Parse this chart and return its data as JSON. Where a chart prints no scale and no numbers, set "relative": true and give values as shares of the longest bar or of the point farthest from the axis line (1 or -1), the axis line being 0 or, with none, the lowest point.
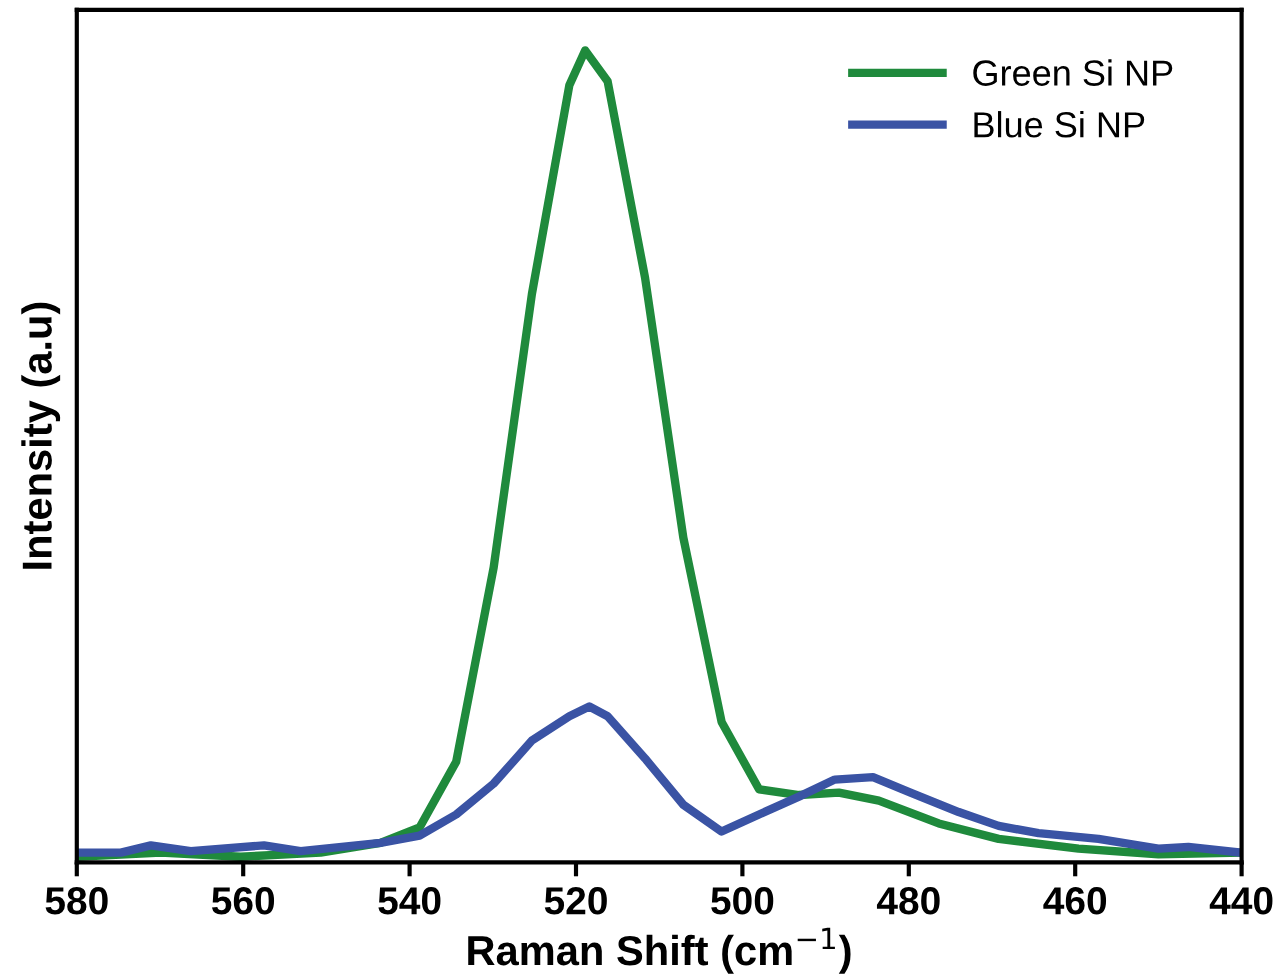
{
  "chart_data": {
    "type": "line",
    "xlabel": "Raman Shift (cm$^{−1}$)",
    "ylabel": "Intensity (a.u)",
    "relative": true,
    "xlim": [
      580,
      440
    ],
    "xticks": [
      580,
      560,
      540,
      520,
      500,
      480,
      460,
      440
    ],
    "legend": "top right",
    "grid": false,
    "series": [
      {
        "name": "Green Si NP",
        "color": "#1f8a3c",
        "x": [
          580,
          569.9,
          560.3,
          550.7,
          543.5,
          538.8,
          534.4,
          529.9,
          525.3,
          520.8,
          518.9,
          516.2,
          511.7,
          507.1,
          502.5,
          498.0,
          493.2,
          488.4,
          483.6,
          476.4,
          469.2,
          459.6,
          450.0,
          440
        ],
        "values": [
          0.007,
          0.012,
          0.007,
          0.012,
          0.024,
          0.043,
          0.124,
          0.363,
          0.7,
          0.957,
          1.0,
          0.962,
          0.72,
          0.4,
          0.173,
          0.09,
          0.083,
          0.086,
          0.076,
          0.048,
          0.029,
          0.017,
          0.01,
          0.012
        ]
      },
      {
        "name": "Blue Si NP",
        "color": "#3a53a4",
        "x": [
          580,
          574.7,
          571.1,
          566.3,
          557.5,
          553.1,
          543.5,
          538.8,
          534.4,
          529.9,
          525.3,
          520.8,
          518.4,
          516.2,
          511.7,
          507.1,
          502.5,
          498.0,
          493.2,
          488.9,
          484.3,
          479.8,
          474.0,
          469.2,
          464.4,
          457.2,
          450.0,
          446.4,
          440
        ],
        "values": [
          0.012,
          0.012,
          0.021,
          0.014,
          0.021,
          0.014,
          0.024,
          0.033,
          0.059,
          0.097,
          0.15,
          0.18,
          0.192,
          0.18,
          0.128,
          0.071,
          0.038,
          0.059,
          0.081,
          0.102,
          0.105,
          0.086,
          0.062,
          0.045,
          0.036,
          0.029,
          0.017,
          0.019,
          0.012
        ]
      }
    ]
  }
}
